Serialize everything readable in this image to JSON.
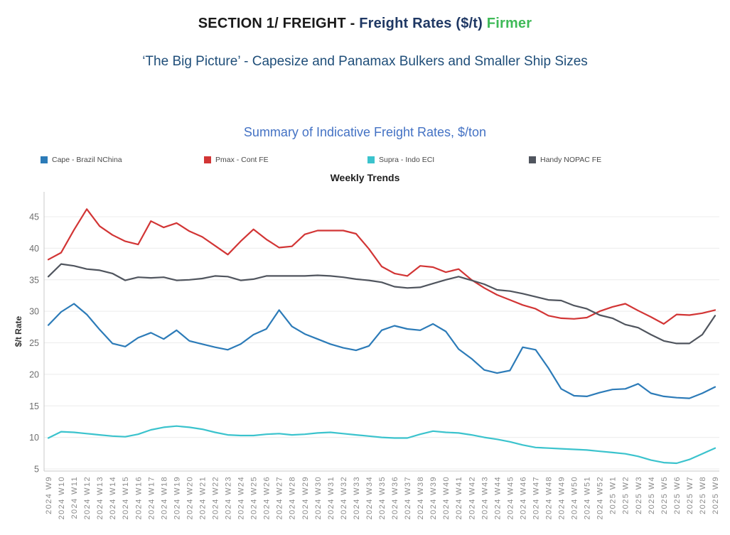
{
  "header": {
    "section_prefix": "SECTION 1/ FREIGHT - ",
    "title": "Freight Rates ($/t)",
    "status": "Firmer",
    "subtitle": "‘The Big Picture’ - Capesize and Panamax Bulkers and Smaller Ship Sizes"
  },
  "colors": {
    "section_text": "#1a1a1a",
    "title_text": "#1f3864",
    "status_text": "#3fba58",
    "subtitle_text": "#1f4e79",
    "chart_title_text": "#4472c4",
    "cape_line": "#2c7bb8",
    "pmax_line": "#d23535",
    "supra_line": "#3bc3cd",
    "handy_line": "#50555e"
  },
  "chart_data": {
    "type": "line",
    "title": "Summary of Indicative Freight Rates, $/ton",
    "subtitle": "Weekly Trends",
    "xlabel": "",
    "ylabel": "$/t Rate",
    "ylim": [
      4,
      47
    ],
    "yticks": [
      5,
      10,
      15,
      20,
      25,
      30,
      35,
      40,
      45
    ],
    "grid": "horizontal-light",
    "legend_position": "top",
    "categories": [
      "2024 W9",
      "2024 W10",
      "2024 W11",
      "2024 W12",
      "2024 W13",
      "2024 W14",
      "2024 W15",
      "2024 W16",
      "2024 W17",
      "2024 W18",
      "2024 W19",
      "2024 W20",
      "2024 W21",
      "2024 W22",
      "2024 W23",
      "2024 W24",
      "2024 W25",
      "2024 W26",
      "2024 W27",
      "2024 W28",
      "2024 W29",
      "2024 W30",
      "2024 W31",
      "2024 W32",
      "2024 W33",
      "2024 W34",
      "2024 W35",
      "2024 W36",
      "2024 W37",
      "2024 W38",
      "2024 W39",
      "2024 W40",
      "2024 W41",
      "2024 W42",
      "2024 W43",
      "2024 W44",
      "2024 W45",
      "2024 W46",
      "2024 W47",
      "2024 W48",
      "2024 W49",
      "2024 W50",
      "2024 W51",
      "2024 W52",
      "2025 W1",
      "2025 W2",
      "2025 W3",
      "2025 W4",
      "2025 W5",
      "2025 W6",
      "2025 W7",
      "2025 W8",
      "2025 W9"
    ],
    "series": [
      {
        "id": "cape",
        "name": "Cape - Brazil NChina",
        "color": "#2c7bb8",
        "values": [
          27.8,
          29.9,
          31.2,
          29.5,
          27.1,
          24.9,
          24.4,
          25.8,
          26.6,
          25.6,
          27.0,
          25.3,
          24.8,
          24.3,
          23.9,
          24.8,
          26.3,
          27.2,
          30.2,
          27.6,
          26.4,
          25.6,
          24.8,
          24.2,
          23.8,
          24.5,
          27.0,
          27.7,
          27.2,
          27.0,
          28.0,
          26.8,
          24.0,
          22.5,
          20.7,
          20.2,
          20.6,
          24.3,
          23.9,
          21.0,
          17.7,
          16.6,
          16.5,
          17.1,
          17.6,
          17.7,
          18.5,
          17.0,
          16.5,
          16.3,
          16.2,
          17.0,
          18.0
        ]
      },
      {
        "id": "pmax",
        "name": "Pmax - Cont FE",
        "color": "#d23535",
        "values": [
          38.2,
          39.3,
          42.9,
          46.2,
          43.5,
          42.1,
          41.1,
          40.6,
          44.3,
          43.3,
          44.0,
          42.7,
          41.8,
          40.4,
          39.0,
          41.1,
          43.0,
          41.4,
          40.1,
          40.3,
          42.2,
          42.8,
          42.8,
          42.8,
          42.3,
          39.9,
          37.1,
          36.0,
          35.6,
          37.2,
          37.0,
          36.2,
          36.7,
          35.0,
          33.7,
          32.6,
          31.8,
          31.0,
          30.4,
          29.3,
          28.9,
          28.8,
          29.0,
          30.0,
          30.7,
          31.2,
          30.1,
          29.1,
          28.0,
          29.5,
          29.4,
          29.7,
          30.2
        ]
      },
      {
        "id": "supra",
        "name": "Supra - Indo ECI",
        "color": "#3bc3cd",
        "values": [
          9.9,
          10.9,
          10.8,
          10.6,
          10.4,
          10.2,
          10.1,
          10.5,
          11.2,
          11.6,
          11.8,
          11.6,
          11.3,
          10.8,
          10.4,
          10.3,
          10.3,
          10.5,
          10.6,
          10.4,
          10.5,
          10.7,
          10.8,
          10.6,
          10.4,
          10.2,
          10.0,
          9.9,
          9.9,
          10.5,
          11.0,
          10.8,
          10.7,
          10.4,
          10.0,
          9.7,
          9.3,
          8.8,
          8.4,
          8.3,
          8.2,
          8.1,
          8.0,
          7.8,
          7.6,
          7.4,
          7.0,
          6.4,
          6.0,
          5.9,
          6.5,
          7.4,
          8.3
        ]
      },
      {
        "id": "handy",
        "name": "Handy NOPAC FE",
        "color": "#50555e",
        "values": [
          35.5,
          37.5,
          37.2,
          36.7,
          36.5,
          36.0,
          34.9,
          35.4,
          35.3,
          35.4,
          34.9,
          35.0,
          35.2,
          35.6,
          35.5,
          34.9,
          35.1,
          35.6,
          35.6,
          35.6,
          35.6,
          35.7,
          35.6,
          35.4,
          35.1,
          34.9,
          34.6,
          33.9,
          33.7,
          33.8,
          34.4,
          35.0,
          35.5,
          34.9,
          34.3,
          33.4,
          33.2,
          32.8,
          32.3,
          31.8,
          31.7,
          30.9,
          30.4,
          29.4,
          28.9,
          27.9,
          27.4,
          26.3,
          25.3,
          24.9,
          24.9,
          26.3,
          29.3
        ]
      }
    ]
  }
}
